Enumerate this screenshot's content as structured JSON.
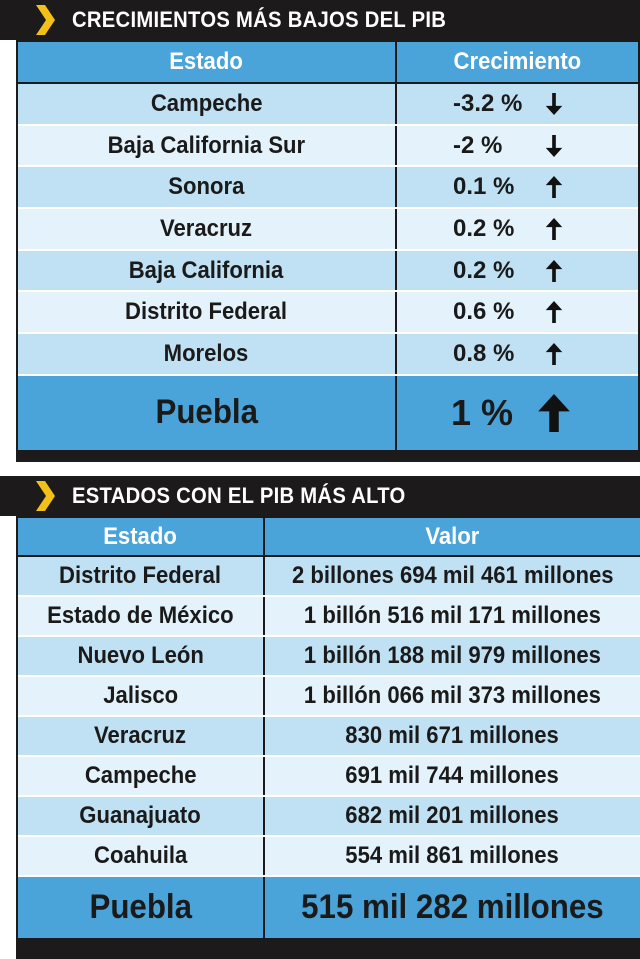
{
  "panel1": {
    "title": "CRECIMIENTOS MÁS BAJOS DEL PIB",
    "headers": [
      "Estado",
      "Crecimiento"
    ],
    "rows": [
      {
        "estado": "Campeche",
        "crecimiento": "-3.2 %",
        "direction": "down"
      },
      {
        "estado": "Baja California Sur",
        "crecimiento": "-2 %",
        "direction": "down"
      },
      {
        "estado": "Sonora",
        "crecimiento": "0.1 %",
        "direction": "up"
      },
      {
        "estado": "Veracruz",
        "crecimiento": "0.2 %",
        "direction": "up"
      },
      {
        "estado": "Baja California",
        "crecimiento": "0.2 %",
        "direction": "up"
      },
      {
        "estado": "Distrito Federal",
        "crecimiento": "0.6 %",
        "direction": "up"
      },
      {
        "estado": "Morelos",
        "crecimiento": "0.8 %",
        "direction": "up"
      }
    ],
    "highlight": {
      "estado": "Puebla",
      "crecimiento": "1 %",
      "direction": "up"
    }
  },
  "panel2": {
    "title": "ESTADOS CON EL PIB MÁS ALTO",
    "headers": [
      "Estado",
      "Valor"
    ],
    "rows": [
      {
        "estado": "Distrito Federal",
        "valor": "2 billones 694 mil 461 millones"
      },
      {
        "estado": "Estado de México",
        "valor": "1 billón 516 mil 171 millones"
      },
      {
        "estado": "Nuevo León",
        "valor": "1 billón 188 mil 979 millones"
      },
      {
        "estado": "Jalisco",
        "valor": "1 billón 066 mil 373 millones"
      },
      {
        "estado": "Veracruz",
        "valor": "830 mil 671 millones"
      },
      {
        "estado": "Campeche",
        "valor": "691 mil 744 millones"
      },
      {
        "estado": "Guanajuato",
        "valor": "682 mil 201 millones"
      },
      {
        "estado": "Coahuila",
        "valor": "554 mil 861 millones"
      }
    ],
    "highlight": {
      "estado": "Puebla",
      "valor": "515 mil 282 millones"
    }
  },
  "colors": {
    "header": "#4aa3d9",
    "row_odd": "#bfe1f3",
    "row_even": "#e4f3fb",
    "title_bg": "#1c1a1a",
    "chevron": "#f2c018"
  },
  "icons": {
    "chevron": "chevron-right-icon",
    "up": "arrow-up-icon",
    "down": "arrow-down-icon"
  }
}
